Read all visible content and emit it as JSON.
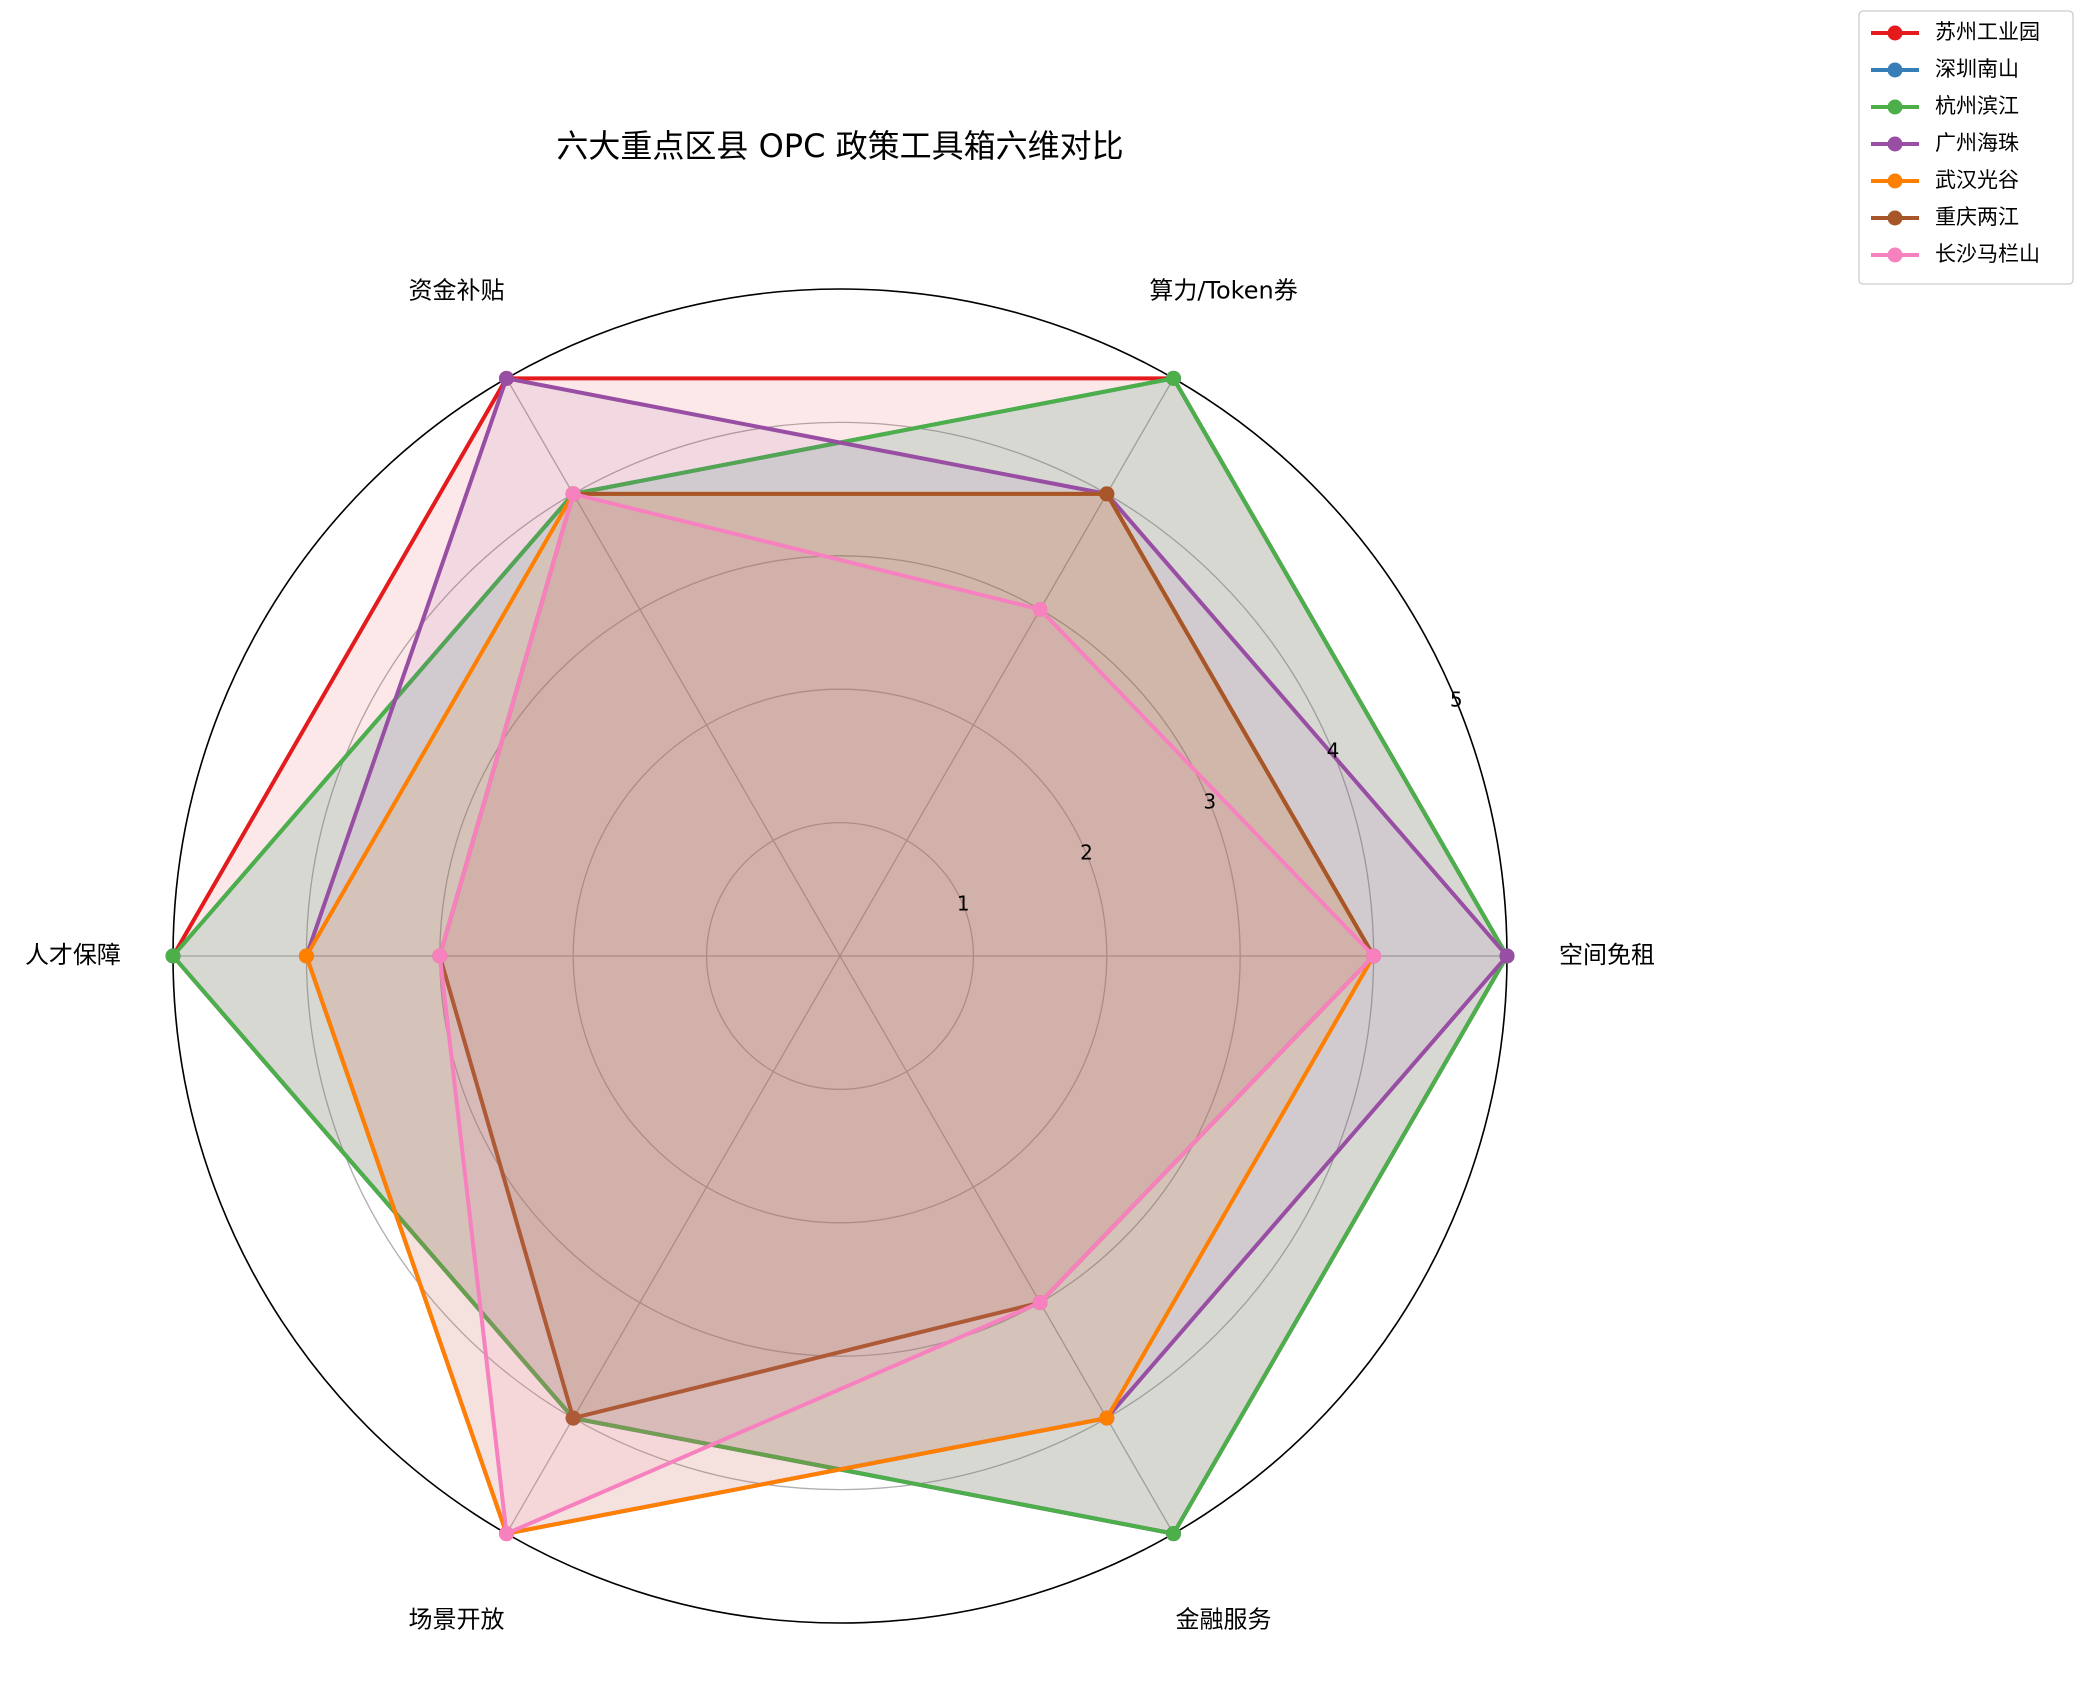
{
  "chart_data": {
    "type": "radar",
    "title": "六大重点区县 OPC 政策工具箱六维对比",
    "categories": [
      "空间免租",
      "算力/Token券",
      "资金补贴",
      "人才保障",
      "场景开放",
      "金融服务"
    ],
    "series": [
      {
        "name": "苏州工业园",
        "color": "#e41a1c",
        "values": [
          5,
          5,
          5,
          5,
          4,
          5
        ]
      },
      {
        "name": "深圳南山",
        "color": "#377eb8",
        "values": [
          5,
          5,
          4,
          5,
          4,
          5
        ]
      },
      {
        "name": "杭州滨江",
        "color": "#4daf4a",
        "values": [
          5,
          5,
          4,
          5,
          4,
          5
        ]
      },
      {
        "name": "广州海珠",
        "color": "#984ea3",
        "values": [
          5,
          4,
          5,
          4,
          5,
          4
        ]
      },
      {
        "name": "武汉光谷",
        "color": "#ff7f00",
        "values": [
          4,
          4,
          4,
          4,
          5,
          4
        ]
      },
      {
        "name": "重庆两江",
        "color": "#a65628",
        "values": [
          4,
          4,
          4,
          3,
          4,
          3
        ]
      },
      {
        "name": "长沙马栏山",
        "color": "#f781bf",
        "values": [
          4,
          3,
          4,
          3,
          5,
          3
        ]
      }
    ],
    "ylim": [
      0,
      5
    ],
    "yticks": [
      1,
      2,
      3,
      4,
      5
    ],
    "grid": true,
    "legend": "upper right"
  }
}
